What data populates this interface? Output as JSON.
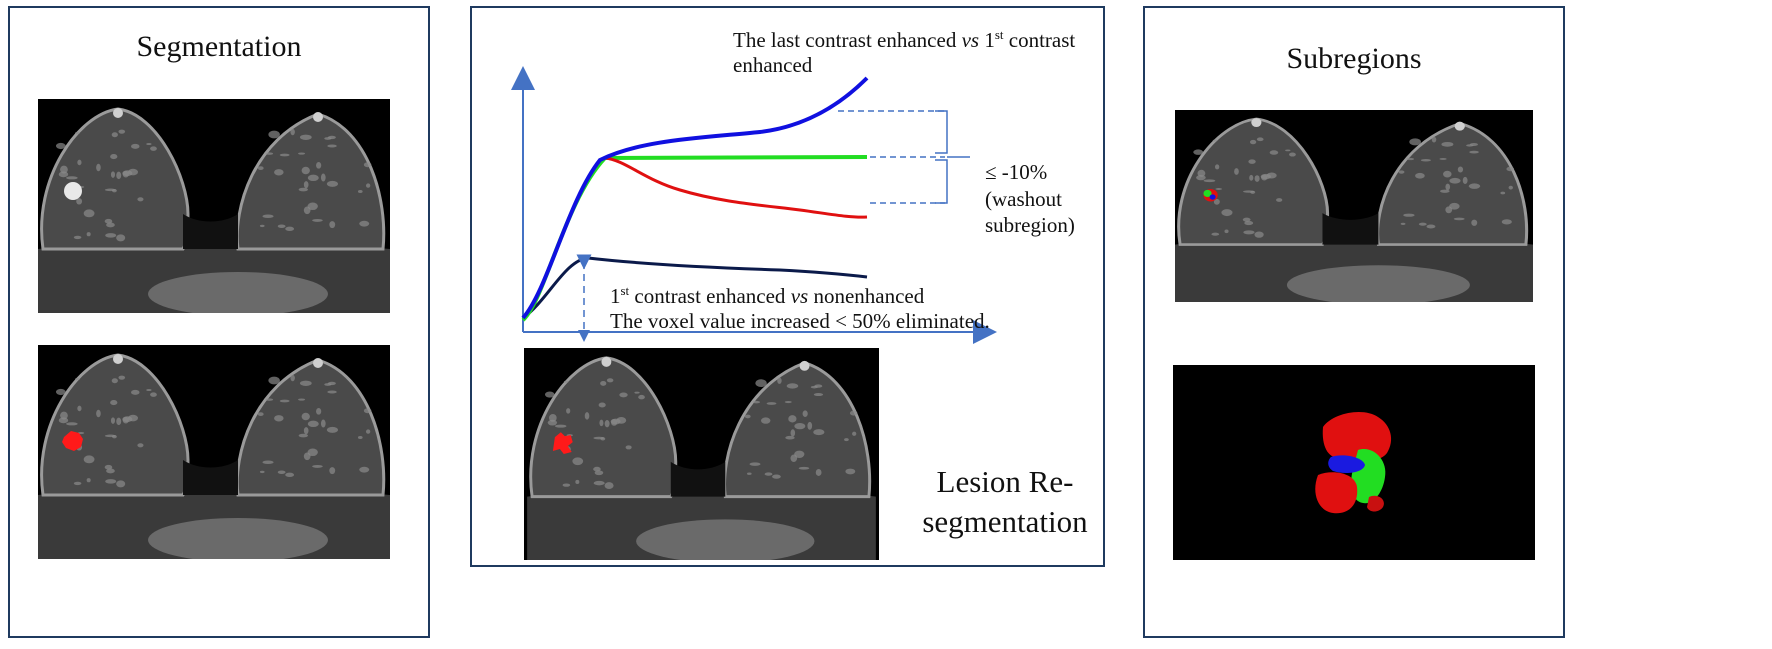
{
  "left_panel": {
    "title": "Segmentation"
  },
  "middle_panel": {
    "top_label": {
      "line1_prefix": "The last contrast enhanced ",
      "vs": "vs",
      "line1_mid": " 1",
      "sup": "st",
      "line1_suffix": " contrast",
      "line2": "enhanced"
    },
    "washout_label": {
      "line1": "≤ -10%",
      "line2": "(washout",
      "line3": "subregion)"
    },
    "bottom_label": {
      "line1_prefix": "1",
      "sup": "st",
      "line1_mid": " contrast enhanced ",
      "vs": "vs",
      "line1_suffix": " nonenhanced",
      "line2": "The voxel value increased < 50% eliminated."
    },
    "lesion_label": {
      "line1": "Lesion Re-",
      "line2": "segmentation"
    }
  },
  "right_panel": {
    "title": "Subregions"
  },
  "colors": {
    "axis": "#4472c4",
    "border": "#1f3a5f",
    "curve_blue": "#1010e0",
    "curve_green": "#22dd22",
    "curve_red": "#e01010",
    "curve_dark": "#0b1a4a",
    "lesion": "#ff1a1a"
  }
}
